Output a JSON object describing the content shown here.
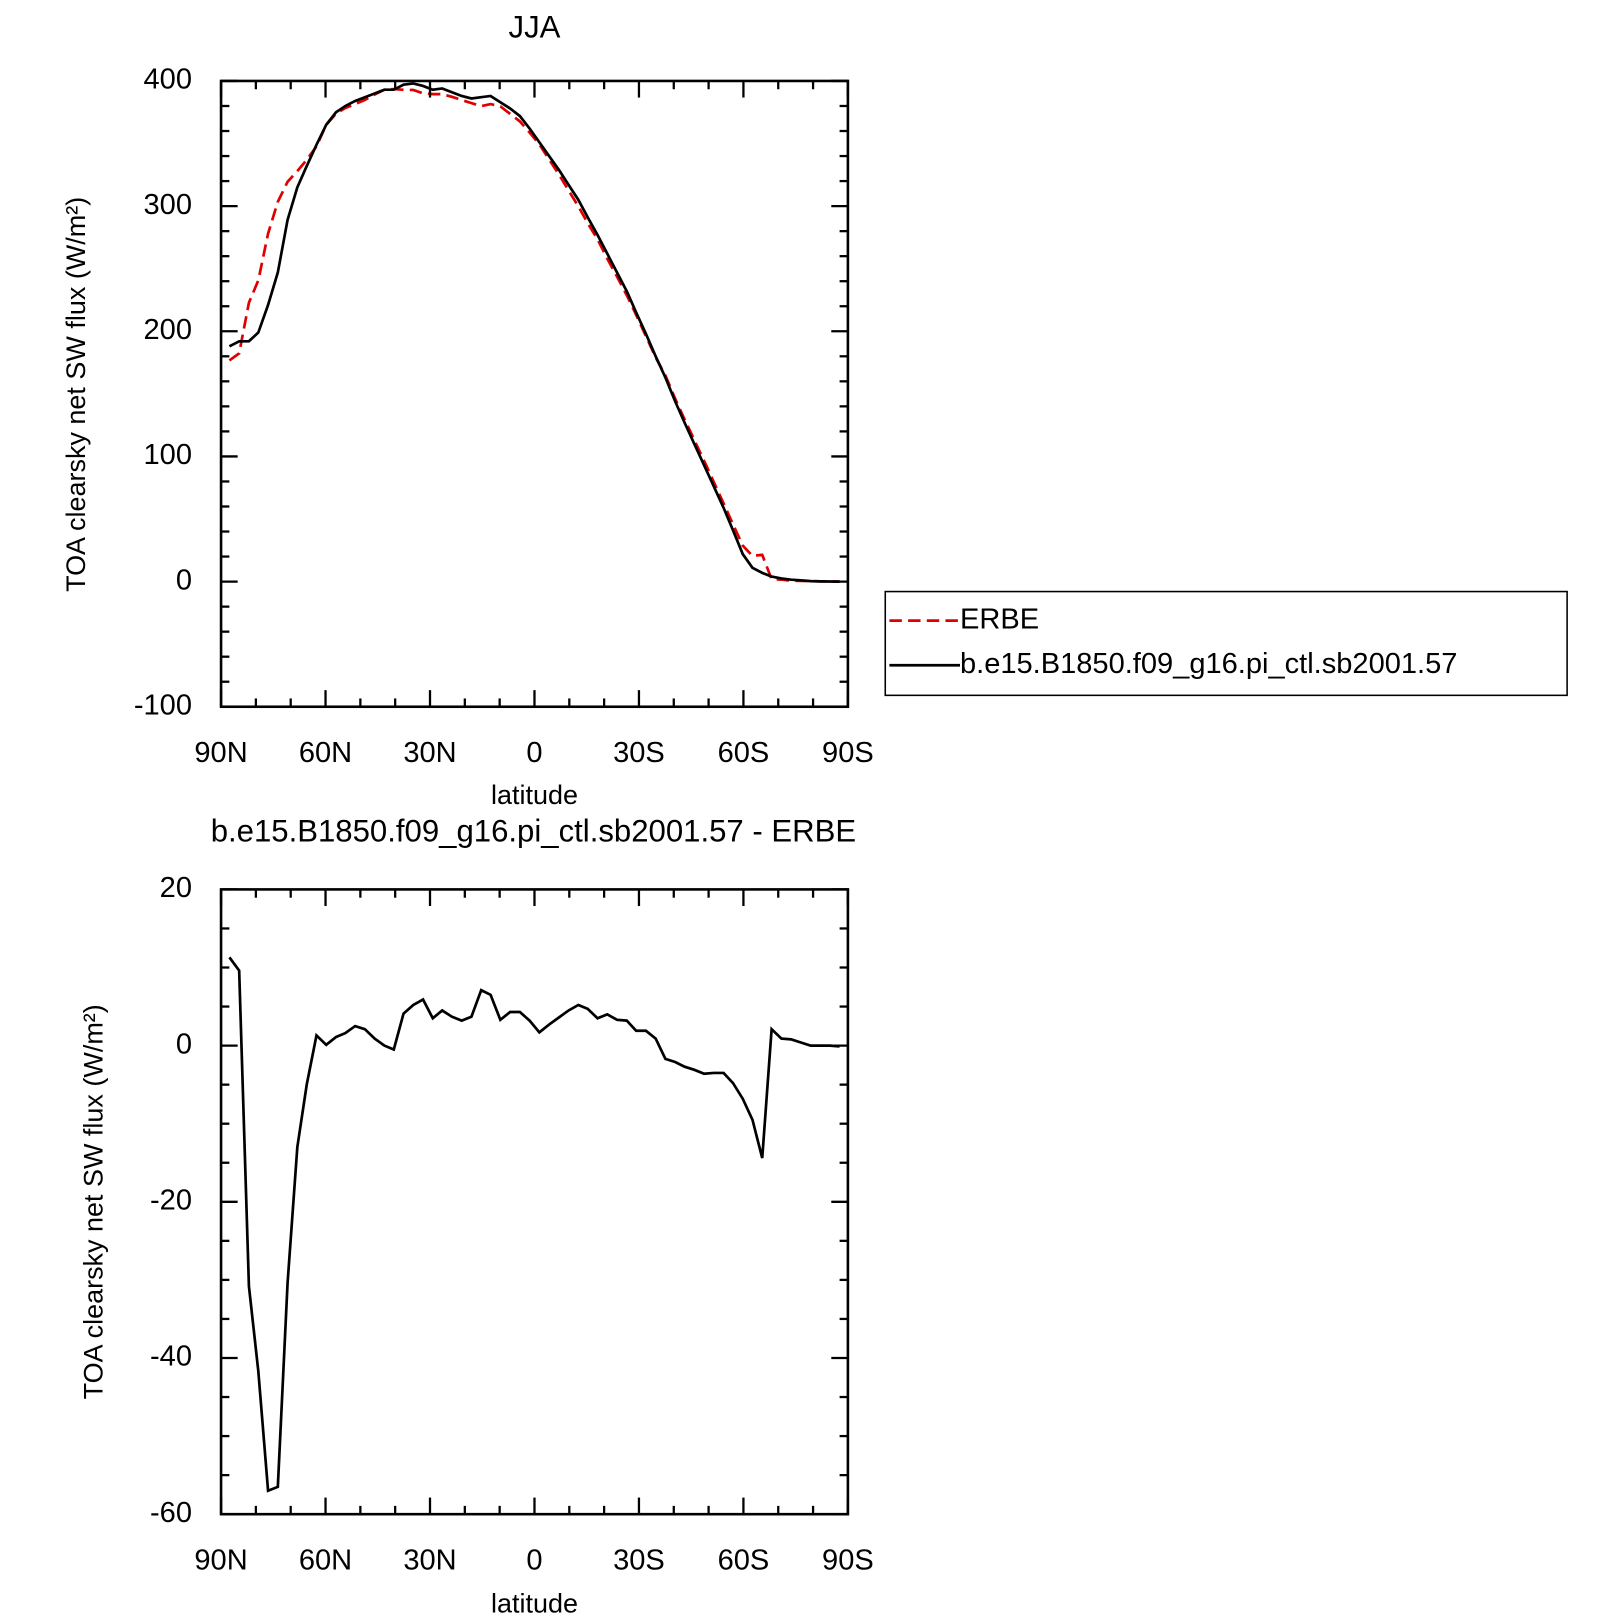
{
  "chart_data": [
    {
      "type": "line",
      "title": "JJA",
      "xlabel": "latitude",
      "ylabel": "TOA clearsky net SW flux (W/m²)",
      "x": [
        87.6,
        84.8,
        82.0,
        79.3,
        76.5,
        73.7,
        70.9,
        68.1,
        65.4,
        62.6,
        59.8,
        57.0,
        54.3,
        51.5,
        48.7,
        45.9,
        43.1,
        40.4,
        37.6,
        34.8,
        32.0,
        29.2,
        26.5,
        23.7,
        20.9,
        18.1,
        15.3,
        12.6,
        9.8,
        7.0,
        4.2,
        1.4,
        -1.4,
        -4.2,
        -7.0,
        -9.8,
        -12.6,
        -15.3,
        -18.1,
        -20.9,
        -23.7,
        -26.5,
        -29.2,
        -32.0,
        -34.8,
        -37.6,
        -40.4,
        -43.1,
        -45.9,
        -48.7,
        -51.5,
        -54.3,
        -57.0,
        -59.8,
        -62.6,
        -65.4,
        -68.1,
        -70.9,
        -73.7,
        -76.5,
        -79.3,
        -82.0,
        -84.8,
        -87.6
      ],
      "xlim": [
        90,
        -90
      ],
      "xticks": [
        {
          "value": 90,
          "label": "90N"
        },
        {
          "value": 60,
          "label": "60N"
        },
        {
          "value": 30,
          "label": "30N"
        },
        0,
        {
          "value": -30,
          "label": "30S"
        },
        {
          "value": -60,
          "label": "60S"
        },
        {
          "value": -90,
          "label": "90S"
        }
      ],
      "xminorticks": [
        80,
        70,
        50,
        40,
        20,
        10,
        -10,
        -20,
        -40,
        -50,
        -70,
        -80
      ],
      "ylim": [
        -100,
        400
      ],
      "yticks": [
        -100,
        0,
        100,
        200,
        300,
        400
      ],
      "yminorticks": [
        -80,
        -60,
        -40,
        -20,
        20,
        40,
        60,
        80,
        120,
        140,
        160,
        180,
        220,
        240,
        260,
        280,
        320,
        340,
        360,
        380
      ],
      "legend": "outside right",
      "series": [
        {
          "name": "ERBE",
          "color": "#e00000",
          "dash": "dashed",
          "values": [
            176.7,
            182.4,
            222.8,
            240.7,
            278,
            303.5,
            319.4,
            328,
            337,
            347.7,
            364.9,
            373.9,
            378.4,
            381.5,
            384.9,
            389.1,
            393,
            393.5,
            392.9,
            392.8,
            390.1,
            389.5,
            389.5,
            387.3,
            384.8,
            382.3,
            379.9,
            381.5,
            379.7,
            373.7,
            367.7,
            358.8,
            349.3,
            337.3,
            325.4,
            312.5,
            299.8,
            286.3,
            273.5,
            258,
            243.7,
            228.8,
            213.1,
            196.1,
            179.1,
            164.7,
            146.1,
            129.7,
            113.1,
            96.6,
            79.5,
            62.5,
            45.8,
            28.8,
            20.5,
            21.4,
            1.9,
            1.6,
            0.7,
            0.6,
            0.4,
            0.2,
            0.1,
            0.1
          ]
        },
        {
          "name": "b.e15.B1850.f09_g16.pi_ctl.sb2001.57",
          "color": "#000000",
          "dash": "solid",
          "values": [
            188,
            192,
            192,
            199,
            221,
            247,
            289,
            315,
            332,
            349,
            365,
            375,
            380,
            384,
            387,
            390,
            393,
            393,
            397,
            398,
            396,
            393,
            394,
            391,
            388,
            386,
            387,
            388,
            383,
            378,
            372,
            362,
            351,
            340,
            329,
            317,
            305,
            291,
            277,
            262,
            247,
            232,
            215,
            198,
            180,
            163,
            144,
            127,
            110,
            93,
            76,
            59,
            41,
            22,
            11,
            7,
            4,
            2.5,
            1.5,
            1,
            0.4,
            0.2,
            0.1,
            0
          ]
        }
      ]
    },
    {
      "type": "line",
      "title": "b.e15.B1850.f09_g16.pi_ctl.sb2001.57 - ERBE",
      "xlabel": "latitude",
      "ylabel": "TOA clearsky net SW flux (W/m²)",
      "x": [
        87.6,
        84.8,
        82.0,
        79.3,
        76.5,
        73.7,
        70.9,
        68.1,
        65.4,
        62.6,
        59.8,
        57.0,
        54.3,
        51.5,
        48.7,
        45.9,
        43.1,
        40.4,
        37.6,
        34.8,
        32.0,
        29.2,
        26.5,
        23.7,
        20.9,
        18.1,
        15.3,
        12.6,
        9.8,
        7.0,
        4.2,
        1.4,
        -1.4,
        -4.2,
        -7.0,
        -9.8,
        -12.6,
        -15.3,
        -18.1,
        -20.9,
        -23.7,
        -26.5,
        -29.2,
        -32.0,
        -34.8,
        -37.6,
        -40.4,
        -43.1,
        -45.9,
        -48.7,
        -51.5,
        -54.3,
        -57.0,
        -59.8,
        -62.6,
        -65.4,
        -68.1,
        -70.9,
        -73.7,
        -76.5,
        -79.3,
        -82.0,
        -84.8,
        -87.6
      ],
      "xlim": [
        90,
        -90
      ],
      "xticks": [
        {
          "value": 90,
          "label": "90N"
        },
        {
          "value": 60,
          "label": "60N"
        },
        {
          "value": 30,
          "label": "30N"
        },
        0,
        {
          "value": -30,
          "label": "30S"
        },
        {
          "value": -60,
          "label": "60S"
        },
        {
          "value": -90,
          "label": "90S"
        }
      ],
      "xminorticks": [
        80,
        70,
        50,
        40,
        20,
        10,
        -10,
        -20,
        -40,
        -50,
        -70,
        -80
      ],
      "ylim": [
        -60,
        20
      ],
      "yticks": [
        -60,
        -40,
        -20,
        0,
        20
      ],
      "yminorticks": [
        -55,
        -50,
        -45,
        -35,
        -30,
        -25,
        -15,
        -10,
        -5,
        5,
        10,
        15
      ],
      "series": [
        {
          "color": "#000000",
          "dash": "solid",
          "values": [
            11.3,
            9.6,
            -30.8,
            -41.7,
            -57,
            -56.5,
            -30.4,
            -13,
            -5,
            1.3,
            0.1,
            1.1,
            1.6,
            2.5,
            2.1,
            0.9,
            0,
            -0.5,
            4.1,
            5.2,
            5.9,
            3.5,
            4.5,
            3.7,
            3.2,
            3.7,
            7.1,
            6.5,
            3.3,
            4.3,
            4.3,
            3.2,
            1.7,
            2.7,
            3.6,
            4.5,
            5.2,
            4.7,
            3.5,
            4.0,
            3.3,
            3.2,
            1.9,
            1.9,
            0.9,
            -1.7,
            -2.1,
            -2.7,
            -3.1,
            -3.6,
            -3.5,
            -3.5,
            -4.8,
            -6.8,
            -9.5,
            -14.4,
            2.1,
            0.9,
            0.8,
            0.4,
            0,
            0,
            0,
            -0.1
          ]
        }
      ]
    }
  ]
}
